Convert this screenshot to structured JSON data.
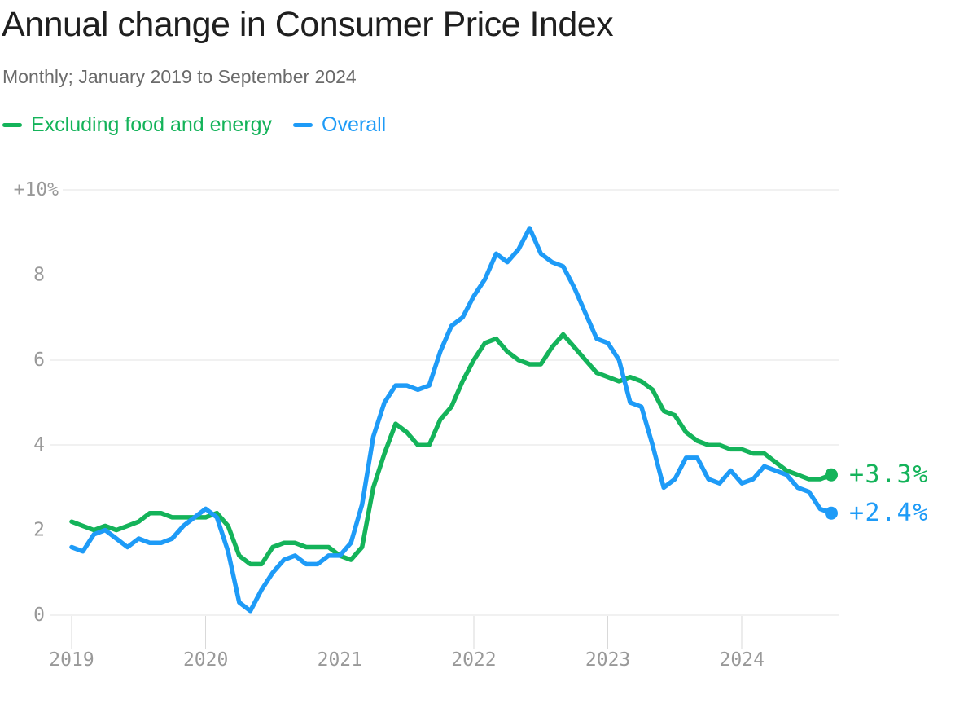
{
  "header": {
    "title": "Annual change in Consumer Price Index",
    "subtitle": "Monthly; January 2019 to September 2024"
  },
  "legend": [
    {
      "id": "core",
      "label": "Excluding food and energy",
      "color": "#14b35a"
    },
    {
      "id": "overall",
      "label": "Overall",
      "color": "#1e9bf7"
    }
  ],
  "colors": {
    "background": "#ffffff",
    "title_text": "#1f1f1f",
    "subtitle_text": "#6a6a6a",
    "axis_text": "#999999",
    "gridline": "#e3e3e3",
    "core_green": "#14b35a",
    "overall_blue": "#1e9bf7"
  },
  "chart_data": {
    "type": "line",
    "title": "Annual change in Consumer Price Index",
    "subtitle": "Monthly; January 2019 to September 2024",
    "x_frequency": "monthly",
    "x_start": "2019-01",
    "x_end": "2024-09",
    "y_unit": "percent change year-over-year",
    "ylim": [
      0,
      10
    ],
    "grid": true,
    "legend_position": "top-left",
    "y_ticks": [
      {
        "value": 0,
        "label": "0"
      },
      {
        "value": 2,
        "label": "2"
      },
      {
        "value": 4,
        "label": "4"
      },
      {
        "value": 6,
        "label": "6"
      },
      {
        "value": 8,
        "label": "8"
      },
      {
        "value": 10,
        "label": "+10%"
      }
    ],
    "x_ticks": [
      {
        "month_index": 0,
        "label": "2019"
      },
      {
        "month_index": 12,
        "label": "2020"
      },
      {
        "month_index": 24,
        "label": "2021"
      },
      {
        "month_index": 36,
        "label": "2022"
      },
      {
        "month_index": 48,
        "label": "2023"
      },
      {
        "month_index": 60,
        "label": "2024"
      }
    ],
    "series": [
      {
        "name": "Excluding food and energy",
        "color": "#14b35a",
        "end_label": "+3.3%",
        "values": [
          2.2,
          2.1,
          2.0,
          2.1,
          2.0,
          2.1,
          2.2,
          2.4,
          2.4,
          2.3,
          2.3,
          2.3,
          2.3,
          2.4,
          2.1,
          1.4,
          1.2,
          1.2,
          1.6,
          1.7,
          1.7,
          1.6,
          1.6,
          1.6,
          1.4,
          1.3,
          1.6,
          3.0,
          3.8,
          4.5,
          4.3,
          4.0,
          4.0,
          4.6,
          4.9,
          5.5,
          6.0,
          6.4,
          6.5,
          6.2,
          6.0,
          5.9,
          5.9,
          6.3,
          6.6,
          6.3,
          6.0,
          5.7,
          5.6,
          5.5,
          5.6,
          5.5,
          5.3,
          4.8,
          4.7,
          4.3,
          4.1,
          4.0,
          4.0,
          3.9,
          3.9,
          3.8,
          3.8,
          3.6,
          3.4,
          3.3,
          3.2,
          3.2,
          3.3
        ]
      },
      {
        "name": "Overall",
        "color": "#1e9bf7",
        "end_label": "+2.4%",
        "values": [
          1.6,
          1.5,
          1.9,
          2.0,
          1.8,
          1.6,
          1.8,
          1.7,
          1.7,
          1.8,
          2.1,
          2.3,
          2.5,
          2.3,
          1.5,
          0.3,
          0.1,
          0.6,
          1.0,
          1.3,
          1.4,
          1.2,
          1.2,
          1.4,
          1.4,
          1.7,
          2.6,
          4.2,
          5.0,
          5.4,
          5.4,
          5.3,
          5.4,
          6.2,
          6.8,
          7.0,
          7.5,
          7.9,
          8.5,
          8.3,
          8.6,
          9.1,
          8.5,
          8.3,
          8.2,
          7.7,
          7.1,
          6.5,
          6.4,
          6.0,
          5.0,
          4.9,
          4.0,
          3.0,
          3.2,
          3.7,
          3.7,
          3.2,
          3.1,
          3.4,
          3.1,
          3.2,
          3.5,
          3.4,
          3.3,
          3.0,
          2.9,
          2.5,
          2.4
        ]
      }
    ]
  }
}
